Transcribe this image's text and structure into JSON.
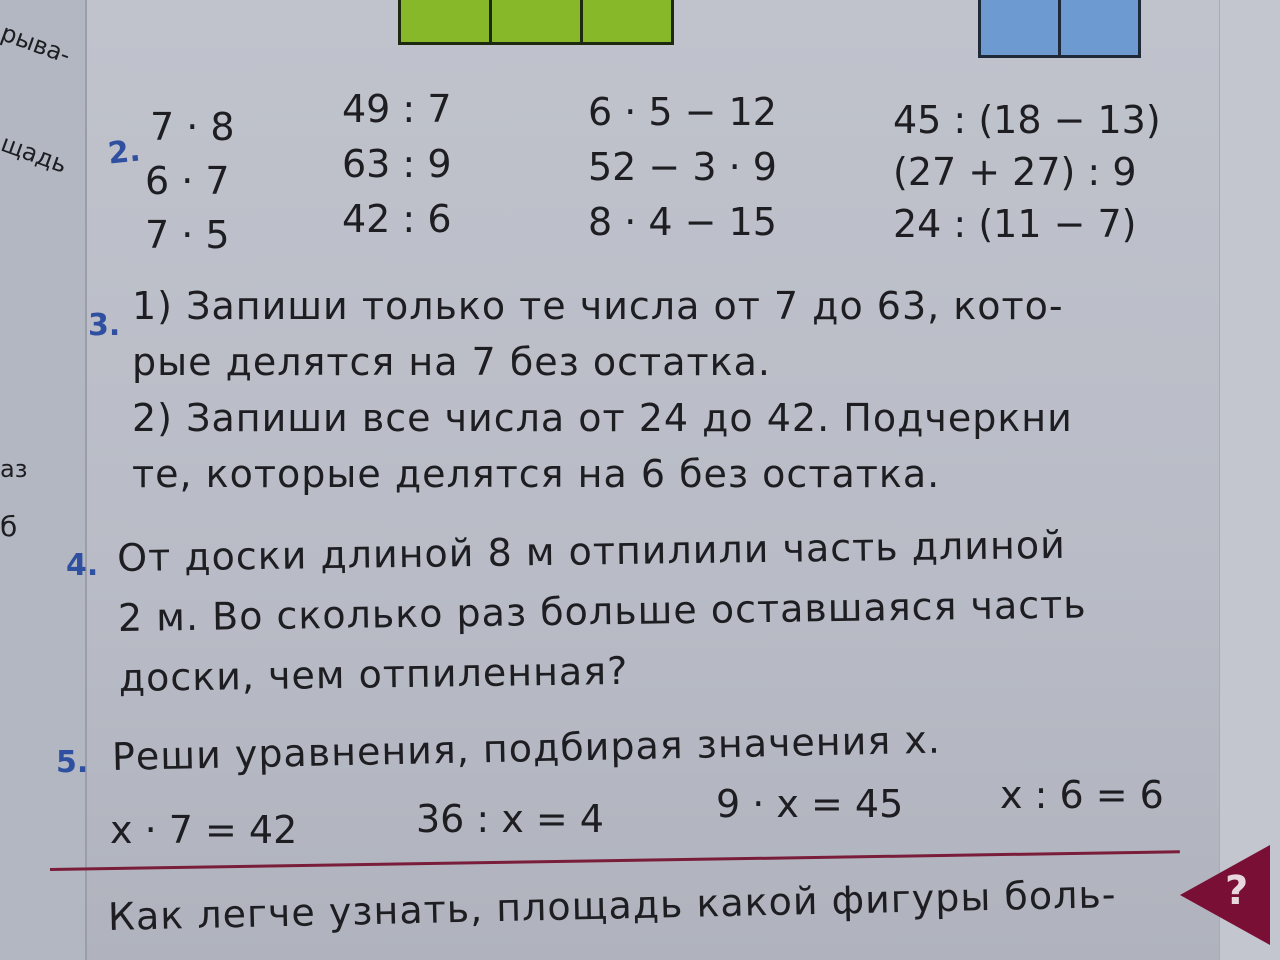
{
  "left_page": {
    "fragments": [
      "рыва-",
      "щадь",
      "аз",
      "б"
    ]
  },
  "task2": {
    "number": "2.",
    "col1": [
      "7 · 8",
      "6 · 7",
      "7 · 5"
    ],
    "col2": [
      "49 : 7",
      "63 : 9",
      "42 : 6"
    ],
    "col3": [
      "6 · 5 − 12",
      "52 − 3 · 9",
      "8 · 4 − 15"
    ],
    "col4": [
      "45 : (18 − 13)",
      "(27 + 27) : 9",
      "24 : (11 − 7)"
    ]
  },
  "task3": {
    "number": "3.",
    "lines": [
      "1) Запиши только те числа от 7 до 63, кото-",
      "рые делятся на 7 без остатка.",
      "2) Запиши все числа от 24 до 42. Подчеркни",
      "те, которые делятся на 6 без остатка."
    ]
  },
  "task4": {
    "number": "4.",
    "lines": [
      "От доски длиной 8 м отпилили часть длиной",
      "2 м. Во сколько раз больше оставшаяся часть",
      "доски, чем отпиленная?"
    ]
  },
  "task5": {
    "number": "5.",
    "title": "Реши уравнения, подбирая значения x.",
    "equations": [
      "x · 7 = 42",
      "36 : x = 4",
      "9 · x = 45",
      "x : 6 = 6"
    ]
  },
  "bottom": {
    "text": "Как легче узнать, площадь какой фигуры боль-",
    "question_marker": "?"
  },
  "colors": {
    "task_number": "#2f4fa0",
    "rule": "#7a1d3a",
    "marker": "#7a0f35",
    "green_figure": "#86b82a",
    "blue_figure": "#6d9ad0"
  }
}
